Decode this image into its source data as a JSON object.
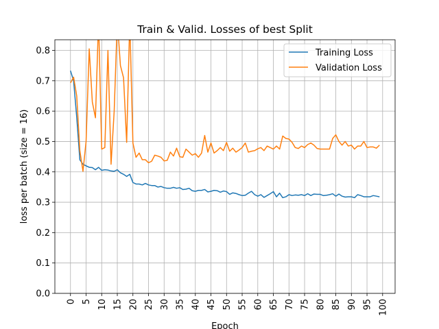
{
  "chart_data": {
    "type": "line",
    "title": "Train & Valid. Losses of best Split",
    "xlabel": "Epoch",
    "ylabel": "loss per batch (size = 16)",
    "xlim": [
      -5,
      104
    ],
    "ylim": [
      0.0,
      0.835
    ],
    "xticks": [
      0,
      5,
      10,
      15,
      20,
      25,
      30,
      35,
      40,
      45,
      50,
      55,
      60,
      65,
      70,
      75,
      80,
      85,
      90,
      95,
      100
    ],
    "xtick_labels": [
      "0",
      "5",
      "10",
      "15",
      "20",
      "25",
      "30",
      "35",
      "40",
      "45",
      "50",
      "55",
      "60",
      "65",
      "70",
      "75",
      "80",
      "85",
      "90",
      "95",
      "100"
    ],
    "yticks": [
      0.0,
      0.1,
      0.2,
      0.3,
      0.4,
      0.5,
      0.6,
      0.7,
      0.8
    ],
    "ytick_labels": [
      "0.0",
      "0.1",
      "0.2",
      "0.3",
      "0.4",
      "0.5",
      "0.6",
      "0.7",
      "0.8"
    ],
    "grid": true,
    "legend_position": "top-right",
    "series": [
      {
        "name": "Training Loss",
        "color": "#1f77b4",
        "x": [
          0,
          1,
          2,
          3,
          4,
          5,
          6,
          7,
          8,
          9,
          10,
          11,
          12,
          13,
          14,
          15,
          16,
          17,
          18,
          19,
          20,
          21,
          22,
          23,
          24,
          25,
          26,
          27,
          28,
          29,
          30,
          31,
          32,
          33,
          34,
          35,
          36,
          37,
          38,
          39,
          40,
          41,
          42,
          43,
          44,
          45,
          46,
          47,
          48,
          49,
          50,
          51,
          52,
          53,
          54,
          55,
          56,
          57,
          58,
          59,
          60,
          61,
          62,
          63,
          64,
          65,
          66,
          67,
          68,
          69,
          70,
          71,
          72,
          73,
          74,
          75,
          76,
          77,
          78,
          79,
          80,
          81,
          82,
          83,
          84,
          85,
          86,
          87,
          88,
          89,
          90,
          91,
          92,
          93,
          94,
          95,
          96,
          97,
          98,
          99
        ],
        "values": [
          0.733,
          0.7,
          0.58,
          0.44,
          0.425,
          0.42,
          0.415,
          0.414,
          0.407,
          0.415,
          0.405,
          0.407,
          0.406,
          0.403,
          0.402,
          0.407,
          0.397,
          0.392,
          0.385,
          0.392,
          0.365,
          0.36,
          0.36,
          0.357,
          0.362,
          0.357,
          0.355,
          0.355,
          0.35,
          0.352,
          0.348,
          0.346,
          0.346,
          0.349,
          0.346,
          0.348,
          0.342,
          0.343,
          0.346,
          0.338,
          0.336,
          0.339,
          0.339,
          0.342,
          0.334,
          0.336,
          0.339,
          0.338,
          0.333,
          0.337,
          0.335,
          0.326,
          0.331,
          0.329,
          0.325,
          0.322,
          0.323,
          0.33,
          0.336,
          0.325,
          0.32,
          0.325,
          0.316,
          0.322,
          0.328,
          0.335,
          0.318,
          0.33,
          0.315,
          0.318,
          0.325,
          0.322,
          0.324,
          0.323,
          0.325,
          0.322,
          0.328,
          0.322,
          0.327,
          0.326,
          0.326,
          0.322,
          0.323,
          0.325,
          0.328,
          0.32,
          0.327,
          0.32,
          0.317,
          0.318,
          0.318,
          0.315,
          0.325,
          0.322,
          0.318,
          0.318,
          0.318,
          0.322,
          0.32,
          0.318
        ]
      },
      {
        "name": "Validation Loss",
        "color": "#ff7f0e",
        "x": [
          0,
          1,
          2,
          3,
          4,
          5,
          6,
          7,
          8,
          9,
          10,
          11,
          12,
          13,
          14,
          15,
          16,
          17,
          18,
          19,
          20,
          21,
          22,
          23,
          24,
          25,
          26,
          27,
          28,
          29,
          30,
          31,
          32,
          33,
          34,
          35,
          36,
          37,
          38,
          39,
          40,
          41,
          42,
          43,
          44,
          45,
          46,
          47,
          48,
          49,
          50,
          51,
          52,
          53,
          54,
          55,
          56,
          57,
          58,
          59,
          60,
          61,
          62,
          63,
          64,
          65,
          66,
          67,
          68,
          69,
          70,
          71,
          72,
          73,
          74,
          75,
          76,
          77,
          78,
          79,
          80,
          81,
          82,
          83,
          84,
          85,
          86,
          87,
          88,
          89,
          90,
          91,
          92,
          93,
          94,
          95,
          96,
          97,
          98,
          99
        ],
        "values": [
          0.693,
          0.712,
          0.65,
          0.47,
          0.402,
          0.5,
          0.805,
          0.63,
          0.578,
          0.9,
          0.475,
          0.48,
          0.8,
          0.425,
          0.6,
          0.9,
          0.75,
          0.71,
          0.497,
          0.9,
          0.495,
          0.448,
          0.462,
          0.44,
          0.44,
          0.43,
          0.435,
          0.455,
          0.452,
          0.448,
          0.436,
          0.438,
          0.465,
          0.452,
          0.478,
          0.45,
          0.448,
          0.475,
          0.465,
          0.455,
          0.46,
          0.448,
          0.462,
          0.52,
          0.465,
          0.495,
          0.462,
          0.47,
          0.48,
          0.47,
          0.497,
          0.468,
          0.478,
          0.465,
          0.472,
          0.48,
          0.495,
          0.465,
          0.468,
          0.47,
          0.476,
          0.48,
          0.47,
          0.485,
          0.48,
          0.475,
          0.485,
          0.475,
          0.518,
          0.51,
          0.508,
          0.497,
          0.48,
          0.477,
          0.485,
          0.48,
          0.49,
          0.495,
          0.488,
          0.477,
          0.475,
          0.475,
          0.475,
          0.475,
          0.51,
          0.522,
          0.5,
          0.488,
          0.5,
          0.485,
          0.488,
          0.475,
          0.485,
          0.485,
          0.5,
          0.48,
          0.482,
          0.482,
          0.478,
          0.488
        ]
      }
    ]
  }
}
